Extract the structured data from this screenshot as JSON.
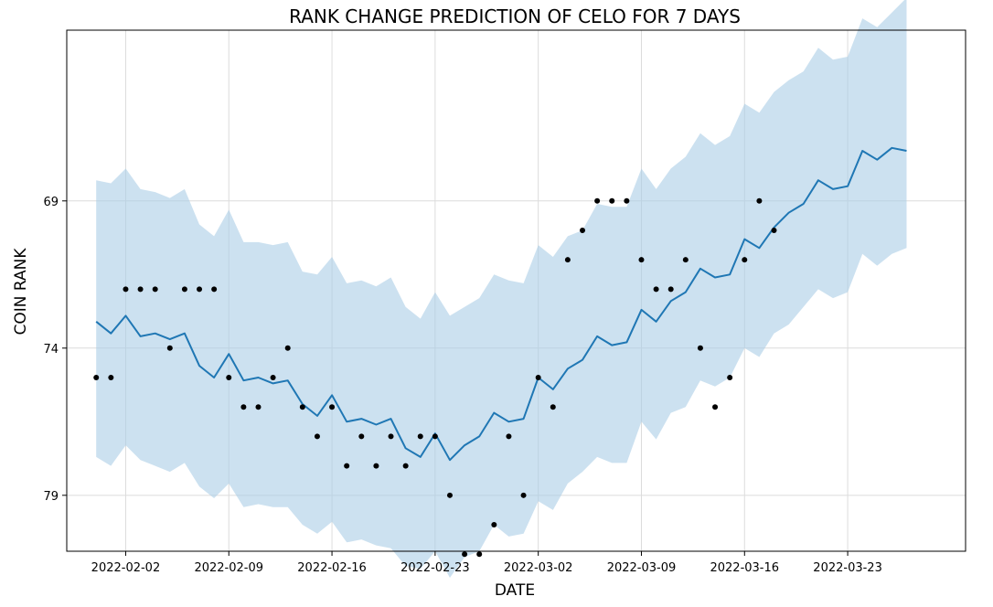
{
  "chart_data": {
    "type": "line",
    "title": "RANK CHANGE PREDICTION OF CELO FOR 7 DAYS",
    "xlabel": "DATE",
    "ylabel": "COIN RANK",
    "y_inverted": true,
    "grid": true,
    "xlim": [
      "2022-01-29",
      "2022-03-31"
    ],
    "ylim": [
      80.9,
      63.2
    ],
    "x_ticks": [
      "2022-02-02",
      "2022-02-09",
      "2022-02-16",
      "2022-02-23",
      "2022-03-02",
      "2022-03-09",
      "2022-03-16",
      "2022-03-23"
    ],
    "y_ticks": [
      69,
      74,
      79
    ],
    "colors": {
      "forecast_line": "#1f77b4",
      "uncertainty_band": "#aacde6",
      "observed_points": "#000000"
    },
    "observed": {
      "x": [
        "2022-01-31",
        "2022-02-01",
        "2022-02-02",
        "2022-02-03",
        "2022-02-04",
        "2022-02-05",
        "2022-02-06",
        "2022-02-07",
        "2022-02-08",
        "2022-02-09",
        "2022-02-10",
        "2022-02-11",
        "2022-02-12",
        "2022-02-13",
        "2022-02-14",
        "2022-02-15",
        "2022-02-16",
        "2022-02-17",
        "2022-02-18",
        "2022-02-19",
        "2022-02-20",
        "2022-02-21",
        "2022-02-22",
        "2022-02-23",
        "2022-02-24",
        "2022-02-25",
        "2022-02-26",
        "2022-02-27",
        "2022-02-28",
        "2022-03-01",
        "2022-03-02",
        "2022-03-03",
        "2022-03-04",
        "2022-03-05",
        "2022-03-06",
        "2022-03-07",
        "2022-03-08",
        "2022-03-09",
        "2022-03-10",
        "2022-03-11",
        "2022-03-12",
        "2022-03-13",
        "2022-03-14",
        "2022-03-15",
        "2022-03-16",
        "2022-03-17",
        "2022-03-18",
        "2022-03-19",
        "2022-03-20"
      ],
      "y": [
        75,
        75,
        72,
        72,
        72,
        74,
        72,
        72,
        72,
        75,
        76,
        76,
        75,
        74,
        76,
        77,
        76,
        78,
        77,
        78,
        77,
        78,
        77,
        77,
        79,
        81,
        81,
        80,
        77,
        79,
        75,
        76,
        71,
        70,
        69,
        69,
        69,
        71,
        72,
        72,
        71,
        74,
        76,
        75,
        71,
        69,
        70,
        null,
        null
      ]
    },
    "forecast": {
      "x": [
        "2022-01-31",
        "2022-02-01",
        "2022-02-02",
        "2022-02-03",
        "2022-02-04",
        "2022-02-05",
        "2022-02-06",
        "2022-02-07",
        "2022-02-08",
        "2022-02-09",
        "2022-02-10",
        "2022-02-11",
        "2022-02-12",
        "2022-02-13",
        "2022-02-14",
        "2022-02-15",
        "2022-02-16",
        "2022-02-17",
        "2022-02-18",
        "2022-02-19",
        "2022-02-20",
        "2022-02-21",
        "2022-02-22",
        "2022-02-23",
        "2022-02-24",
        "2022-02-25",
        "2022-02-26",
        "2022-02-27",
        "2022-02-28",
        "2022-03-01",
        "2022-03-02",
        "2022-03-03",
        "2022-03-04",
        "2022-03-05",
        "2022-03-06",
        "2022-03-07",
        "2022-03-08",
        "2022-03-09",
        "2022-03-10",
        "2022-03-11",
        "2022-03-12",
        "2022-03-13",
        "2022-03-14",
        "2022-03-15",
        "2022-03-16",
        "2022-03-17",
        "2022-03-18",
        "2022-03-19",
        "2022-03-20",
        "2022-03-21",
        "2022-03-22",
        "2022-03-23",
        "2022-03-24",
        "2022-03-25",
        "2022-03-26",
        "2022-03-27"
      ],
      "yhat": [
        73.1,
        73.5,
        72.9,
        73.6,
        73.5,
        73.7,
        73.5,
        74.6,
        75.0,
        74.2,
        75.1,
        75.0,
        75.2,
        75.1,
        75.9,
        76.3,
        75.6,
        76.5,
        76.4,
        76.6,
        76.4,
        77.4,
        77.7,
        76.9,
        77.8,
        77.3,
        77.0,
        76.2,
        76.5,
        76.4,
        75.0,
        75.4,
        74.7,
        74.4,
        73.6,
        73.9,
        73.8,
        72.7,
        73.1,
        72.4,
        72.1,
        71.3,
        71.6,
        71.5,
        70.3,
        70.6,
        69.9,
        69.4,
        69.1,
        68.3,
        68.6,
        68.5,
        67.3,
        67.6,
        67.2,
        67.3
      ],
      "yhat_lower": [
        77.7,
        78.0,
        77.3,
        77.8,
        78.0,
        78.2,
        77.9,
        78.7,
        79.1,
        78.6,
        79.4,
        79.3,
        79.4,
        79.4,
        80.0,
        80.3,
        79.9,
        80.6,
        80.5,
        80.7,
        80.8,
        81.4,
        81.5,
        80.9,
        81.8,
        81.1,
        80.9,
        80.0,
        80.4,
        80.3,
        79.2,
        79.5,
        78.6,
        78.2,
        77.7,
        77.9,
        77.9,
        76.5,
        77.1,
        76.2,
        76.0,
        75.1,
        75.3,
        75.0,
        74.0,
        74.3,
        73.5,
        73.2,
        72.6,
        72.0,
        72.3,
        72.1,
        70.8,
        71.2,
        70.8,
        70.6
      ],
      "yhat_upper": [
        68.3,
        68.4,
        67.9,
        68.6,
        68.7,
        68.9,
        68.6,
        69.8,
        70.2,
        69.3,
        70.4,
        70.4,
        70.5,
        70.4,
        71.4,
        71.5,
        70.9,
        71.8,
        71.7,
        71.9,
        71.6,
        72.6,
        73.0,
        72.1,
        72.9,
        72.6,
        72.3,
        71.5,
        71.7,
        71.8,
        70.5,
        70.9,
        70.2,
        70.0,
        69.1,
        69.2,
        69.2,
        67.9,
        68.6,
        67.9,
        67.5,
        66.7,
        67.1,
        66.8,
        65.7,
        66.0,
        65.3,
        64.9,
        64.6,
        63.8,
        64.2,
        64.1,
        62.8,
        63.1,
        62.6,
        62.1
      ]
    }
  }
}
